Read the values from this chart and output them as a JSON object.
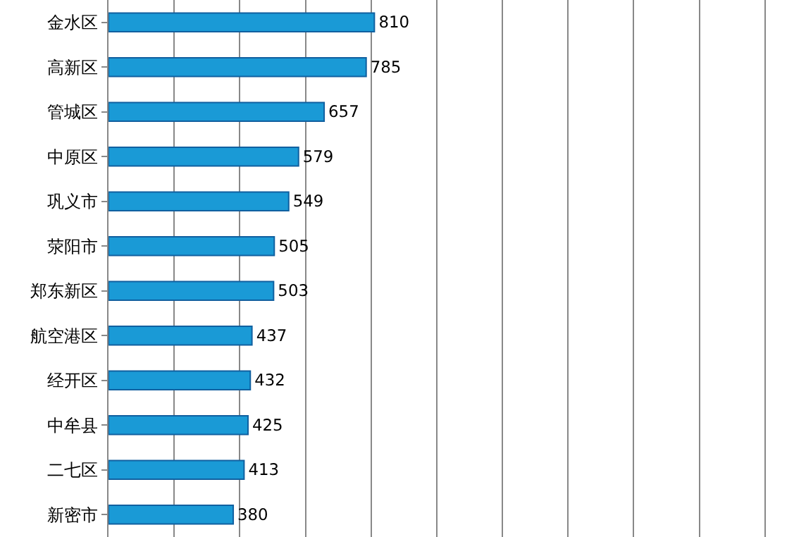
{
  "chart_data": {
    "type": "bar",
    "orientation": "horizontal",
    "categories": [
      "金水区",
      "高新区",
      "管城区",
      "中原区",
      "巩义市",
      "荥阳市",
      "郑东新区",
      "航空港区",
      "经开区",
      "中牟县",
      "二七区",
      "新密市"
    ],
    "values": [
      810,
      785,
      657,
      579,
      549,
      505,
      503,
      437,
      432,
      425,
      413,
      380
    ],
    "color": "#1a9ad6",
    "xlim": [
      0,
      2125
    ],
    "xticks": [
      {
        "value": 0,
        "label": null
      },
      {
        "value": 200,
        "label": null
      },
      {
        "value": 400,
        "label": null
      },
      {
        "value": 600,
        "label": null
      },
      {
        "value": 800,
        "label": null
      },
      {
        "value": 1000,
        "label": null
      },
      {
        "value": 1200,
        "label": null
      },
      {
        "value": 1400,
        "label": null
      },
      {
        "value": 1600,
        "label": null
      },
      {
        "value": 1800,
        "label": null
      },
      {
        "value": 2000,
        "label": null
      }
    ],
    "tick_labels": "y",
    "grid": "x",
    "data_labels": true,
    "legend": false
  }
}
